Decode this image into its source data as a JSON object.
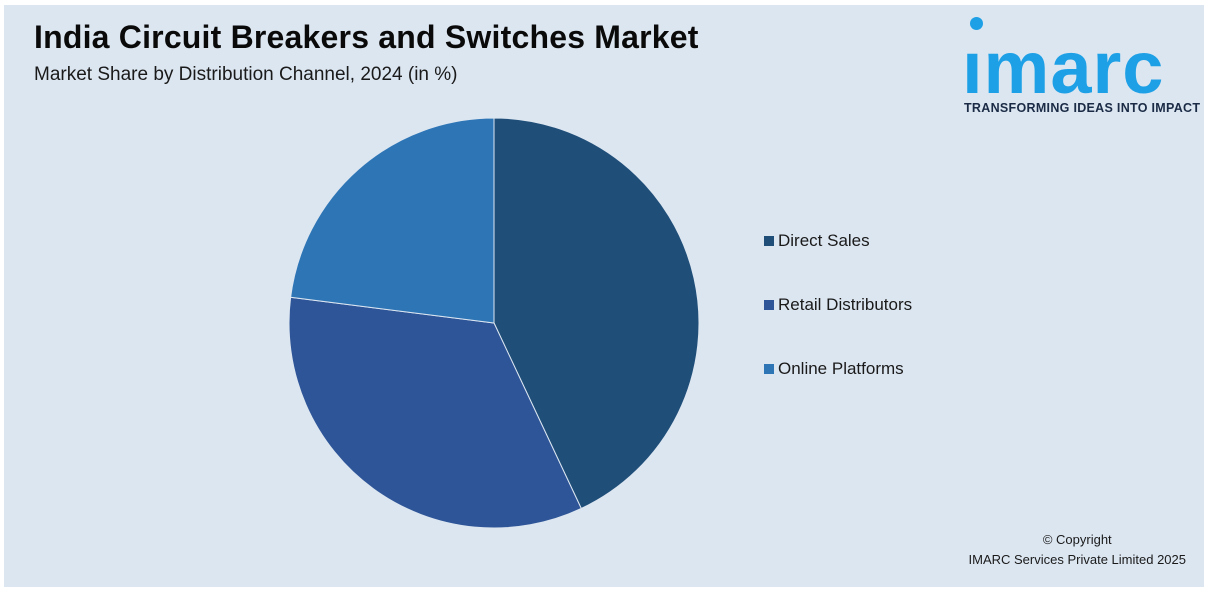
{
  "header": {
    "title": "India Circuit Breakers and Switches Market",
    "subtitle": "Market Share by Distribution Channel, 2024 (in %)"
  },
  "logo": {
    "word": "ımarc",
    "tagline": "TRANSFORMING IDEAS INTO IMPACT",
    "color": "#1ea0e6"
  },
  "chart_data": {
    "type": "pie",
    "title": "India Circuit Breakers and Switches Market",
    "subtitle": "Market Share by Distribution Channel, 2024 (in %)",
    "categories": [
      "Direct Sales",
      "Retail Distributors",
      "Online Platforms"
    ],
    "values": [
      43,
      34,
      23
    ],
    "colors": [
      "#1f4e79",
      "#2e5597",
      "#2e75b6"
    ],
    "legend_position": "right"
  },
  "footer": {
    "copyright_line1": "© Copyright",
    "copyright_line2": "IMARC Services Private Limited 2025"
  }
}
